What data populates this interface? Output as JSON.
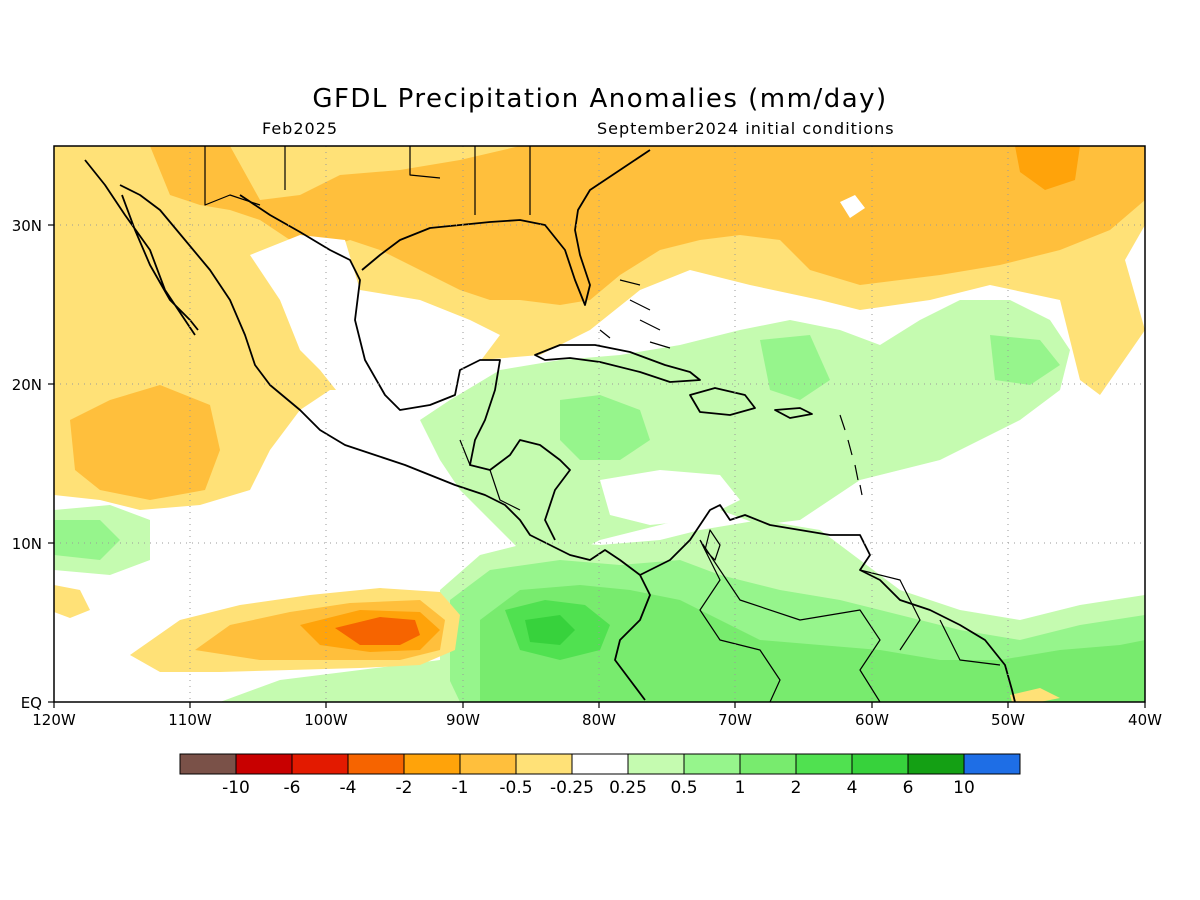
{
  "header": {
    "title": "GFDL Precipitation Anomalies (mm/day)",
    "valid_month": "Feb2025",
    "init_conditions": "September2024 initial conditions"
  },
  "map": {
    "lon_ticks": [
      "120W",
      "110W",
      "100W",
      "90W",
      "80W",
      "70W",
      "60W",
      "50W",
      "40W"
    ],
    "lat_ticks": [
      "EQ",
      "10N",
      "20N",
      "30N"
    ],
    "lon_range": [
      -120,
      -40
    ],
    "lat_range": [
      0,
      35
    ]
  },
  "colorbar": {
    "colors": [
      "#7a5148",
      "#c80000",
      "#e31a00",
      "#f66400",
      "#ffa30a",
      "#ffbf3c",
      "#ffe177",
      "#ffffff",
      "#c5fbb0",
      "#96f58c",
      "#78eb6e",
      "#50e150",
      "#37d23c",
      "#14a014",
      "#1e6ee6"
    ],
    "labels": [
      "-10",
      "-6",
      "-4",
      "-2",
      "-1",
      "-0.5",
      "-0.25",
      "0.25",
      "0.5",
      "1",
      "2",
      "4",
      "6",
      "10"
    ]
  }
}
